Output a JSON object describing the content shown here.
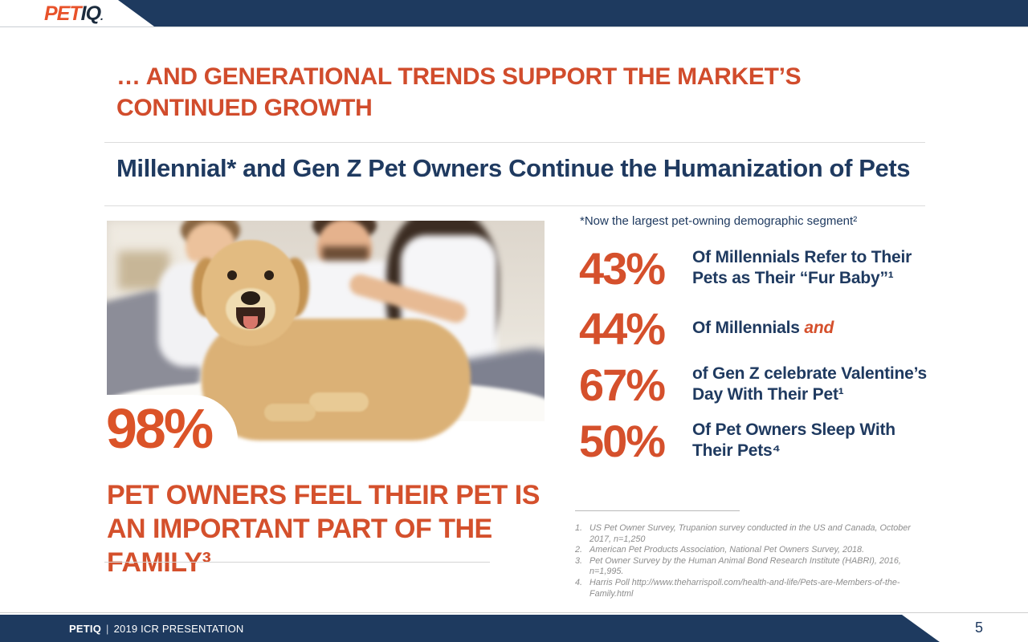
{
  "colors": {
    "navy": "#1E3A5F",
    "orange": "#D4502C",
    "logo_orange": "#E8522A",
    "footnote_gray": "#8D8D8D"
  },
  "logo": {
    "pet": "PET",
    "iq": "IQ",
    "dot": "."
  },
  "title": "… AND GENERATIONAL TRENDS SUPPORT THE MARKET’S CONTINUED GROWTH",
  "subtitle": "Millennial* and Gen Z Pet Owners Continue the Humanization of Pets",
  "note": "*Now the largest pet-owning demographic segment²",
  "highlight": {
    "value": "98%",
    "caption": "PET OWNERS FEEL THEIR PET IS AN IMPORTANT PART OF THE FAMILY³"
  },
  "stats": {
    "rows": [
      {
        "value": "43%",
        "label": "Of Millennials Refer to Their Pets as Their “Fur Baby”¹"
      },
      {
        "value": "44%",
        "label": "Of Millennials ",
        "label_accent": "and"
      },
      {
        "value": "67%",
        "label": "of Gen Z celebrate Valentine’s Day With Their Pet¹"
      },
      {
        "value": "50%",
        "label": "Of Pet Owners Sleep With Their Pets⁴"
      }
    ]
  },
  "footnotes": {
    "numbers": [
      "1.",
      "2.",
      "3.",
      "4."
    ],
    "items": [
      "US Pet Owner Survey, Trupanion survey conducted in the US and Canada, October 2017, n=1,250",
      "American Pet Products Association, National Pet Owners Survey, 2018.",
      "Pet Owner Survey by the Human Animal Bond Research Institute (HABRI), 2016, n=1,995.",
      "Harris Poll http://www.theharrispoll.com/health-and-life/Pets-are-Members-of-the-Family.html"
    ]
  },
  "footer": {
    "brand": "PETIQ",
    "separator": "|",
    "text": "2019 ICR PRESENTATION",
    "page": "5"
  }
}
